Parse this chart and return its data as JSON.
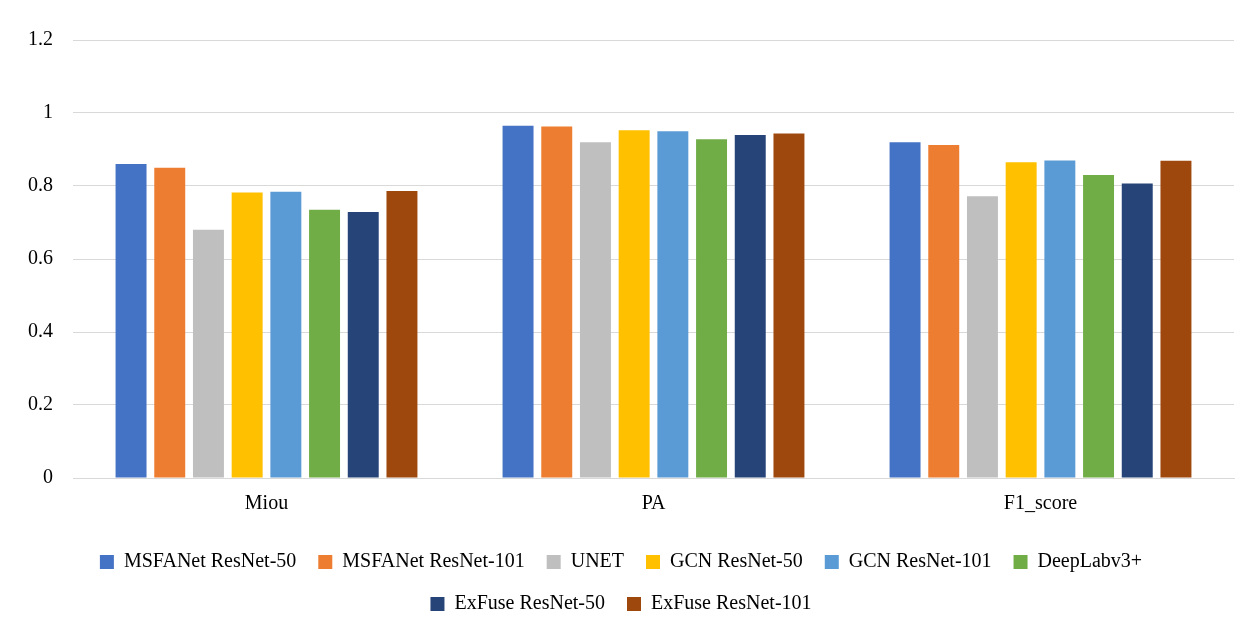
{
  "chart_data": {
    "type": "bar",
    "categories": [
      "Miou",
      "PA",
      "F1_score"
    ],
    "series": [
      {
        "name": "MSFANet ResNet-50",
        "color": "#4472c4",
        "values": [
          0.86,
          0.965,
          0.92
        ]
      },
      {
        "name": "MSFANet ResNet-101",
        "color": "#ed7d31",
        "values": [
          0.85,
          0.963,
          0.912
        ]
      },
      {
        "name": "UNET",
        "color": "#bfbfbf",
        "values": [
          0.68,
          0.92,
          0.772
        ]
      },
      {
        "name": "GCN ResNet-50",
        "color": "#ffc000",
        "values": [
          0.782,
          0.953,
          0.865
        ]
      },
      {
        "name": "GCN ResNet-101",
        "color": "#5b9bd5",
        "values": [
          0.784,
          0.95,
          0.87
        ]
      },
      {
        "name": "DeepLabv3+",
        "color": "#70ad47",
        "values": [
          0.735,
          0.928,
          0.83
        ]
      },
      {
        "name": "ExFuse ResNet-50",
        "color": "#264478",
        "values": [
          0.729,
          0.94,
          0.807
        ]
      },
      {
        "name": "ExFuse ResNet-101",
        "color": "#9e480e",
        "values": [
          0.786,
          0.944,
          0.869
        ]
      }
    ],
    "ylim": [
      0,
      1.2
    ],
    "yticks": [
      0,
      0.2,
      0.4,
      0.6,
      0.8,
      1,
      1.2
    ],
    "grid": "y",
    "legend": "bottom"
  }
}
